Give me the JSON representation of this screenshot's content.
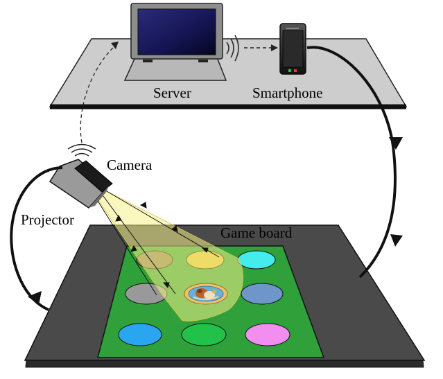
{
  "labels": {
    "server": "Server",
    "smartphone": "Smartphone",
    "camera": "Camera",
    "projector": "Projector",
    "game_board": "Game board"
  },
  "colors": {
    "table_top": "#cdcdcd",
    "table_edge": "#111111",
    "base": "#4a4a4a",
    "board_green": "#2fa03a",
    "light_cone": "#f5f08a",
    "device_gray": "#9a9a9a",
    "screen_blue": "#1a1a6e"
  },
  "board_spots": [
    {
      "name": "spot-top-left",
      "color": "#8a7a55"
    },
    {
      "name": "spot-top-middle",
      "color": "#e6c43a"
    },
    {
      "name": "spot-top-right",
      "color": "#45ecec"
    },
    {
      "name": "spot-middle-left",
      "color": "#999999"
    },
    {
      "name": "spot-middle-right",
      "color": "#6e96c8"
    },
    {
      "name": "spot-bottom-left",
      "color": "#2aa6f0"
    },
    {
      "name": "spot-bottom-middle",
      "color": "#22c24a"
    },
    {
      "name": "spot-bottom-right",
      "color": "#f28ef0"
    }
  ]
}
